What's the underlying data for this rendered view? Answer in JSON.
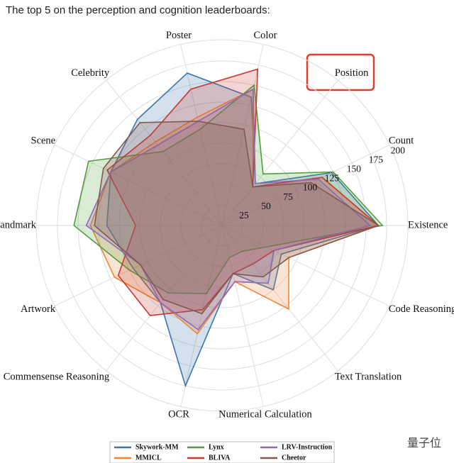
{
  "caption": "The top 5 on the perception and cognition leaderboards:",
  "watermark": "量子位",
  "chart_data": {
    "type": "radar",
    "categories": [
      "Existence",
      "Count",
      "Position",
      "Color",
      "Poster",
      "Celebrity",
      "Scene",
      "Landmark",
      "Artwork",
      "Commensense Reasoning",
      "OCR",
      "Numerical Calculation",
      "Text Translation",
      "Code Reasoning"
    ],
    "ylim": [
      0,
      200
    ],
    "yticks": [
      25,
      50,
      75,
      100,
      125,
      150,
      175,
      200
    ],
    "grid": true,
    "legend": "bottom",
    "series": [
      {
        "name": "Skywork-MM",
        "color": "#3b75af",
        "values": [
          190,
          148,
          65,
          160,
          190,
          165,
          150,
          140,
          120,
          120,
          200,
          60,
          100,
          80
        ]
      },
      {
        "name": "MMICL",
        "color": "#ef8636",
        "values": [
          190,
          135,
          60,
          170,
          135,
          130,
          150,
          160,
          145,
          120,
          135,
          70,
          130,
          90
        ]
      },
      {
        "name": "Lynx",
        "color": "#519e3e",
        "values": [
          195,
          150,
          80,
          175,
          120,
          115,
          180,
          180,
          125,
          105,
          85,
          40,
          40,
          60
        ]
      },
      {
        "name": "BLIVA",
        "color": "#c53a32",
        "values": [
          190,
          135,
          60,
          195,
          170,
          140,
          155,
          105,
          140,
          140,
          105,
          60,
          60,
          70
        ]
      },
      {
        "name": "LRV-Instruction",
        "color": "#8d69b8",
        "values": [
          180,
          130,
          65,
          170,
          130,
          125,
          150,
          165,
          110,
          120,
          130,
          70,
          90,
          70
        ]
      },
      {
        "name": "Cheetor",
        "color": "#84584e",
        "values": [
          190,
          120,
          60,
          120,
          130,
          160,
          160,
          155,
          110,
          115,
          110,
          60,
          80,
          90
        ]
      }
    ]
  }
}
